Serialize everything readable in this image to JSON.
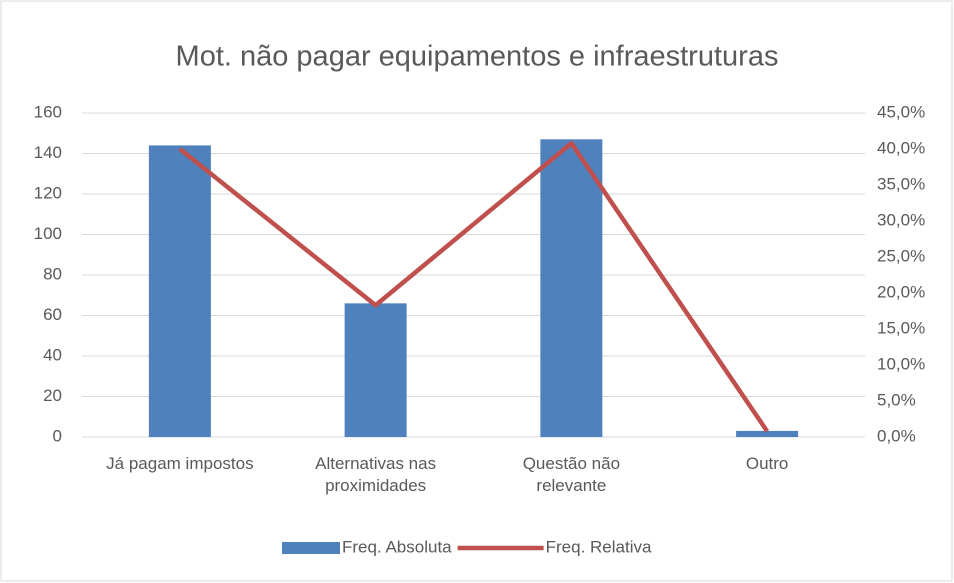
{
  "chart_data": {
    "type": "bar+line",
    "title": "Mot. não pagar equipamentos e infraestruturas",
    "categories": [
      "Já pagam impostos",
      "Alternativas nas proximidades",
      "Questão não relevante",
      "Outro"
    ],
    "series": [
      {
        "name": "Freq. Absoluta",
        "type": "bar",
        "color": "#4f81bd",
        "values": [
          144,
          66,
          147,
          3
        ]
      },
      {
        "name": "Freq. Relativa",
        "type": "line",
        "color": "#c0504d",
        "axis": "y2",
        "values": [
          40.0,
          18.3,
          40.8,
          0.8
        ]
      }
    ],
    "ylim": [
      0,
      160
    ],
    "yticks": [
      0,
      20,
      40,
      60,
      80,
      100,
      120,
      140,
      160
    ],
    "y2lim": [
      0,
      45
    ],
    "y2ticks": [
      {
        "value": 0,
        "label": "0,0%"
      },
      {
        "value": 5,
        "label": "5,0%"
      },
      {
        "value": 10,
        "label": "10,0%"
      },
      {
        "value": 15,
        "label": "15,0%"
      },
      {
        "value": 20,
        "label": "20,0%"
      },
      {
        "value": 25,
        "label": "25,0%"
      },
      {
        "value": 30,
        "label": "30,0%"
      },
      {
        "value": 35,
        "label": "35,0%"
      },
      {
        "value": 40,
        "label": "40,0%"
      },
      {
        "value": 45,
        "label": "45,0%"
      }
    ],
    "grid": true,
    "legend": "bottom"
  }
}
